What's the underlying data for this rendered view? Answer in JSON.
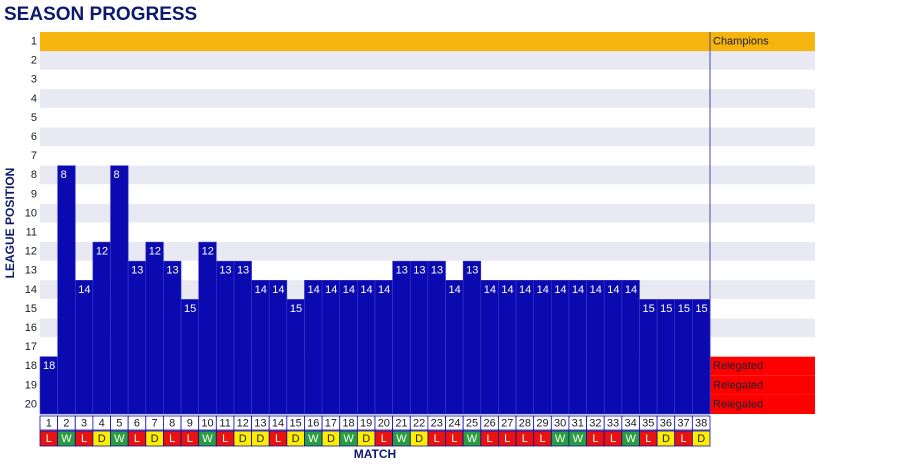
{
  "chart_data": {
    "type": "bar",
    "title": "SEASON PROGRESS",
    "x_label": "MATCH",
    "y_label": "LEAGUE POSITION",
    "categories": [
      1,
      2,
      3,
      4,
      5,
      6,
      7,
      8,
      9,
      10,
      11,
      12,
      13,
      14,
      15,
      16,
      17,
      18,
      19,
      20,
      21,
      22,
      23,
      24,
      25,
      26,
      27,
      28,
      29,
      30,
      31,
      32,
      33,
      34,
      35,
      36,
      37,
      38
    ],
    "values": [
      18,
      8,
      14,
      12,
      8,
      13,
      12,
      13,
      15,
      12,
      13,
      13,
      14,
      14,
      15,
      14,
      14,
      14,
      14,
      14,
      13,
      13,
      13,
      14,
      13,
      14,
      14,
      14,
      14,
      14,
      14,
      14,
      14,
      14,
      15,
      15,
      15,
      15
    ],
    "results": [
      "L",
      "W",
      "L",
      "D",
      "W",
      "L",
      "D",
      "L",
      "L",
      "W",
      "L",
      "D",
      "D",
      "L",
      "D",
      "W",
      "D",
      "W",
      "D",
      "L",
      "W",
      "D",
      "L",
      "L",
      "W",
      "L",
      "L",
      "L",
      "L",
      "W",
      "W",
      "L",
      "L",
      "W",
      "L",
      "D",
      "L",
      "D"
    ],
    "result_colors": {
      "W": "#2a9d3f",
      "L": "#e8130e",
      "D": "#ffee00"
    },
    "color": "#0a0ab0",
    "ylim": [
      0.5,
      20.5
    ],
    "inverted": true,
    "yticks": [
      1,
      2,
      3,
      4,
      5,
      6,
      7,
      8,
      9,
      10,
      11,
      12,
      13,
      14,
      15,
      16,
      17,
      18,
      19,
      20
    ],
    "zones": [
      {
        "position": 1,
        "label": "Champions",
        "color": "#f6b40e"
      },
      {
        "position": 18,
        "label": "Relegated",
        "color": "#ff0000"
      },
      {
        "position": 19,
        "label": "Relegated",
        "color": "#ff0000"
      },
      {
        "position": 20,
        "label": "Relegated",
        "color": "#ff0000"
      }
    ]
  }
}
